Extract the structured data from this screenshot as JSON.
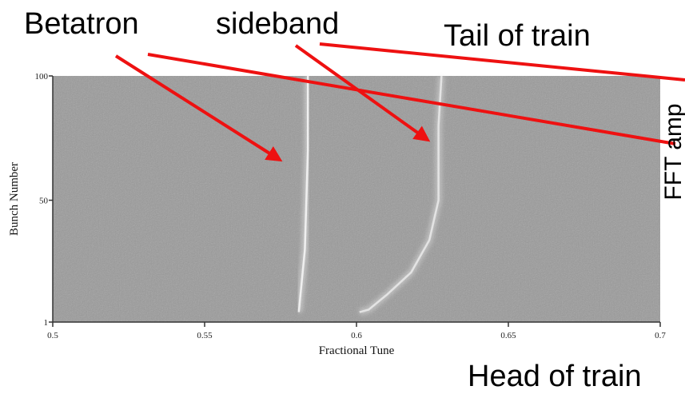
{
  "chart_data": {
    "type": "spectrogram",
    "annotations": [
      "Betatron",
      "sideband",
      "Tail of train",
      "FFT amp",
      "Head of train"
    ],
    "xlabel": "Fractional Tune",
    "ylabel": "Bunch Number",
    "xlim": [
      0.5,
      0.7
    ],
    "xticks": [
      0.5,
      0.55,
      0.6,
      0.65,
      0.7
    ],
    "ylim": [
      1,
      100
    ],
    "yticks": [
      1,
      50,
      100
    ],
    "series": [
      {
        "color": "#f4f4f4",
        "x": [
          0.581,
          0.583,
          0.584,
          0.584
        ],
        "values": [
          5,
          30,
          70,
          100
        ]
      },
      {
        "color": "#e8e8e8",
        "x": [
          0.601,
          0.604,
          0.61,
          0.618,
          0.624,
          0.627,
          0.627,
          0.628
        ],
        "values": [
          5,
          6,
          12,
          21,
          34,
          50,
          80,
          100
        ]
      }
    ]
  }
}
